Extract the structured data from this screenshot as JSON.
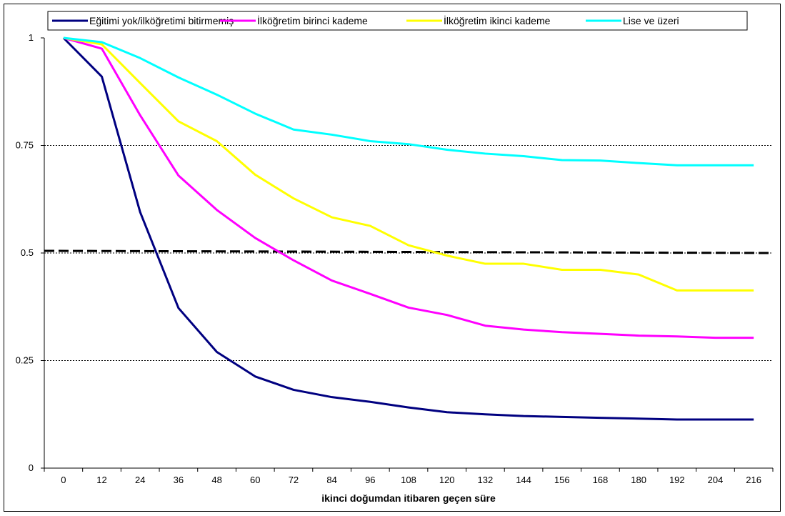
{
  "chart_data": {
    "type": "line",
    "title": "",
    "xlabel": "ikinci doğumdan itibaren geçen süre",
    "ylabel": "",
    "x": [
      "0",
      "12",
      "24",
      "36",
      "48",
      "60",
      "72",
      "84",
      "96",
      "108",
      "120",
      "132",
      "144",
      "156",
      "168",
      "180",
      "192",
      "204",
      "216"
    ],
    "ylim": [
      0,
      1
    ],
    "yticks": [
      "0",
      "0.25",
      "0.5",
      "0.75",
      "1"
    ],
    "grid": "horizontal dotted at 0.25, 0.5, 0.75",
    "legend_position": "top",
    "series": [
      {
        "name": "Eğitimi yok/ilköğretimi bitirmemiş",
        "color": "#000080",
        "values": [
          1.0,
          0.91,
          0.595,
          0.372,
          0.27,
          0.213,
          0.182,
          0.165,
          0.154,
          0.141,
          0.13,
          0.125,
          0.121,
          0.119,
          0.117,
          0.115,
          0.113,
          0.113,
          0.113
        ]
      },
      {
        "name": "İlköğretim birinci kademe",
        "color": "#ff00ff",
        "values": [
          1.0,
          0.975,
          0.82,
          0.68,
          0.6,
          0.535,
          0.483,
          0.436,
          0.405,
          0.373,
          0.356,
          0.331,
          0.322,
          0.316,
          0.312,
          0.308,
          0.306,
          0.303,
          0.303
        ]
      },
      {
        "name": "İlköğretim ikinci kademe",
        "color": "#ffff00",
        "values": [
          1.0,
          0.985,
          0.895,
          0.806,
          0.76,
          0.682,
          0.627,
          0.583,
          0.563,
          0.518,
          0.494,
          0.475,
          0.475,
          0.461,
          0.461,
          0.45,
          0.413,
          0.413,
          0.413
        ]
      },
      {
        "name": "Lise ve üzeri",
        "color": "#00ffff",
        "values": [
          1.0,
          0.99,
          0.953,
          0.908,
          0.868,
          0.824,
          0.787,
          0.775,
          0.76,
          0.753,
          0.74,
          0.731,
          0.725,
          0.716,
          0.715,
          0.709,
          0.704,
          0.704,
          0.704
        ]
      }
    ],
    "reference_line": {
      "y_start": 0.505,
      "y_end": 0.5,
      "style": "dashed",
      "color": "#000000"
    }
  }
}
